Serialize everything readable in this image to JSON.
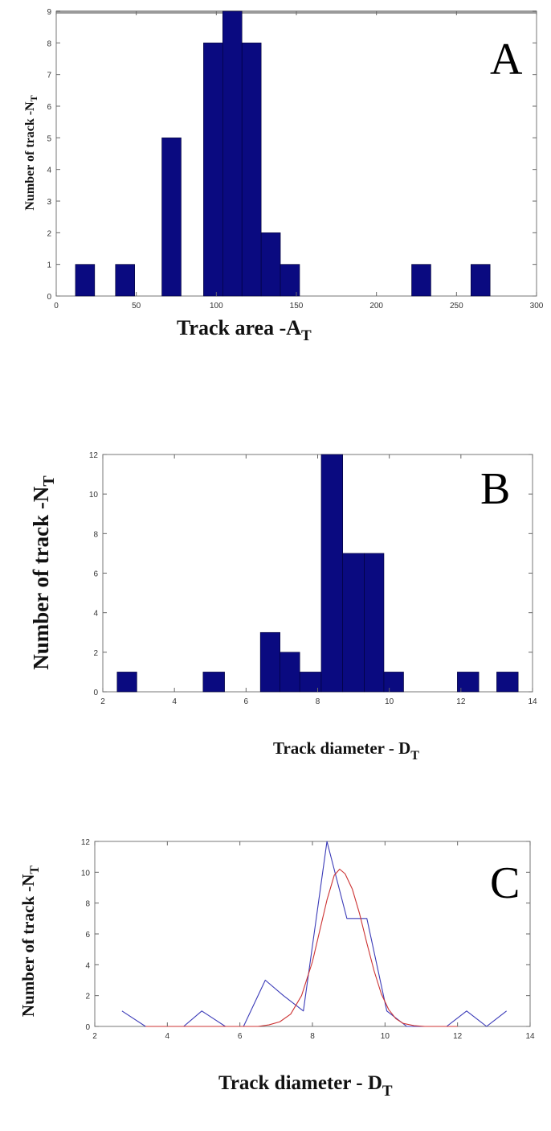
{
  "chart_data": [
    {
      "type": "bar",
      "panel_letter": "A",
      "xlabel": "Track area -A",
      "xlabel_sub": "T",
      "ylabel": "Number of track -N",
      "ylabel_sub": "T",
      "xlim": [
        0,
        300
      ],
      "ylim": [
        0,
        9
      ],
      "xticks": [
        0,
        50,
        100,
        150,
        200,
        250,
        300
      ],
      "yticks": [
        0,
        1,
        2,
        3,
        4,
        5,
        6,
        7,
        8,
        9
      ],
      "bar_color": "#0a0a80",
      "bars": [
        {
          "x0": 12,
          "x1": 24,
          "y": 1
        },
        {
          "x0": 37,
          "x1": 49,
          "y": 1
        },
        {
          "x0": 66,
          "x1": 78,
          "y": 5
        },
        {
          "x0": 92,
          "x1": 104,
          "y": 8
        },
        {
          "x0": 104,
          "x1": 116,
          "y": 9
        },
        {
          "x0": 116,
          "x1": 128,
          "y": 8
        },
        {
          "x0": 128,
          "x1": 140,
          "y": 2
        },
        {
          "x0": 140,
          "x1": 152,
          "y": 1
        },
        {
          "x0": 222,
          "x1": 234,
          "y": 1
        },
        {
          "x0": 259,
          "x1": 271,
          "y": 1
        }
      ]
    },
    {
      "type": "bar",
      "panel_letter": "B",
      "xlabel": "Track diameter - D",
      "xlabel_sub": "T",
      "ylabel": "Number of track -N",
      "ylabel_sub": "T",
      "xlim": [
        2,
        14
      ],
      "ylim": [
        0,
        12
      ],
      "xticks": [
        2,
        4,
        6,
        8,
        10,
        12,
        14
      ],
      "yticks": [
        0,
        2,
        4,
        6,
        8,
        10,
        12
      ],
      "bar_color": "#0a0a80",
      "bars": [
        {
          "x0": 2.4,
          "x1": 2.95,
          "y": 1
        },
        {
          "x0": 4.8,
          "x1": 5.4,
          "y": 1
        },
        {
          "x0": 6.4,
          "x1": 6.95,
          "y": 3
        },
        {
          "x0": 6.95,
          "x1": 7.5,
          "y": 2
        },
        {
          "x0": 7.5,
          "x1": 8.1,
          "y": 1
        },
        {
          "x0": 8.1,
          "x1": 8.7,
          "y": 12
        },
        {
          "x0": 8.7,
          "x1": 9.3,
          "y": 7
        },
        {
          "x0": 9.3,
          "x1": 9.85,
          "y": 7
        },
        {
          "x0": 9.85,
          "x1": 10.4,
          "y": 1
        },
        {
          "x0": 11.9,
          "x1": 12.5,
          "y": 1
        },
        {
          "x0": 13.0,
          "x1": 13.6,
          "y": 1
        }
      ]
    },
    {
      "type": "line",
      "panel_letter": "C",
      "xlabel": "Track diameter - D",
      "xlabel_sub": "T",
      "ylabel": "Number of track -N",
      "ylabel_sub": "T",
      "xlim": [
        2,
        14
      ],
      "ylim": [
        0,
        12
      ],
      "xticks": [
        2,
        4,
        6,
        8,
        10,
        12,
        14
      ],
      "yticks": [
        0,
        2,
        4,
        6,
        8,
        10,
        12
      ],
      "series": [
        {
          "color": "#3b3bb8",
          "x": [
            2.75,
            3.4,
            4.45,
            4.95,
            5.6,
            6.1,
            6.7,
            7.2,
            7.75,
            8.4,
            8.95,
            9.5,
            10.05,
            10.6,
            11.7,
            12.25,
            12.8,
            13.35
          ],
          "y": [
            1,
            0,
            0,
            1,
            0,
            0,
            3,
            2,
            1,
            12,
            7,
            7,
            1,
            0,
            0,
            1,
            0,
            1
          ]
        },
        {
          "color": "#cc3333",
          "x": [
            3.4,
            4.0,
            4.5,
            5.0,
            5.5,
            6.0,
            6.5,
            6.8,
            7.1,
            7.4,
            7.7,
            8.0,
            8.2,
            8.4,
            8.6,
            8.75,
            8.9,
            9.1,
            9.3,
            9.5,
            9.7,
            9.9,
            10.1,
            10.3,
            10.5,
            10.8,
            11.1,
            11.5,
            12.0
          ],
          "y": [
            0,
            0,
            0,
            0,
            0,
            0,
            0,
            0.1,
            0.3,
            0.8,
            2.0,
            4.2,
            6.2,
            8.2,
            9.8,
            10.2,
            9.9,
            8.9,
            7.3,
            5.4,
            3.6,
            2.1,
            1.1,
            0.5,
            0.2,
            0.05,
            0,
            0,
            0
          ]
        }
      ]
    }
  ]
}
